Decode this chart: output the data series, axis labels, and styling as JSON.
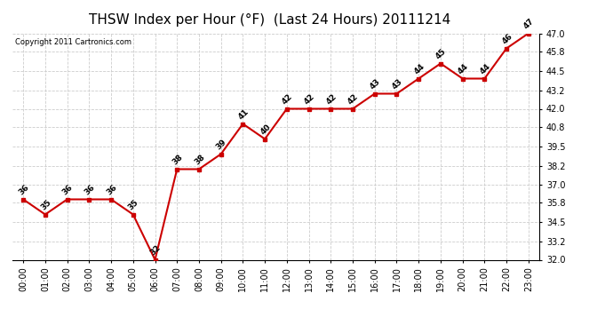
{
  "title": "THSW Index per Hour (°F)  (Last 24 Hours) 20111214",
  "copyright": "Copyright 2011 Cartronics.com",
  "hours": [
    "00:00",
    "01:00",
    "02:00",
    "03:00",
    "04:00",
    "05:00",
    "06:00",
    "07:00",
    "08:00",
    "09:00",
    "10:00",
    "11:00",
    "12:00",
    "13:00",
    "14:00",
    "15:00",
    "16:00",
    "17:00",
    "18:00",
    "19:00",
    "20:00",
    "21:00",
    "22:00",
    "23:00"
  ],
  "values": [
    36,
    35,
    36,
    36,
    36,
    35,
    32,
    38,
    38,
    39,
    41,
    40,
    42,
    42,
    42,
    42,
    43,
    43,
    44,
    45,
    44,
    44,
    46,
    47
  ],
  "ylim_min": 32.0,
  "ylim_max": 47.0,
  "yticks": [
    32.0,
    33.2,
    34.5,
    35.8,
    37.0,
    38.2,
    39.5,
    40.8,
    42.0,
    43.2,
    44.5,
    45.8,
    47.0
  ],
  "line_color": "#cc0000",
  "marker_color": "#cc0000",
  "bg_color": "#ffffff",
  "grid_color": "#cccccc",
  "title_fontsize": 11,
  "label_fontsize": 7,
  "annotation_fontsize": 6.5,
  "copyright_fontsize": 6
}
